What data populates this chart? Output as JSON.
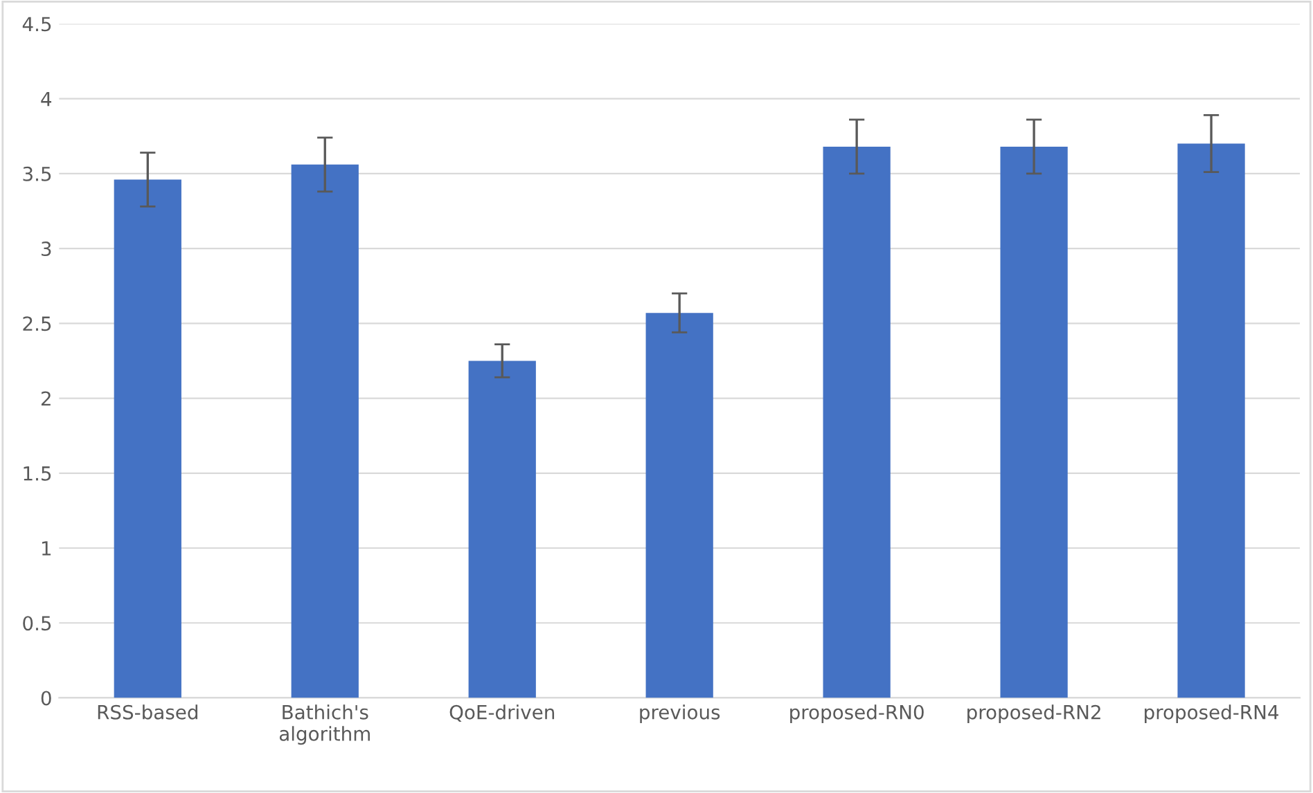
{
  "chart_data": {
    "type": "bar",
    "categories": [
      "RSS-based",
      "Bathich's algorithm",
      "QoE-driven",
      "previous",
      "proposed-RN0",
      "proposed-RN2",
      "proposed-RN4"
    ],
    "values": [
      3.46,
      3.56,
      2.25,
      2.57,
      3.68,
      3.68,
      3.7
    ],
    "errors": [
      0.18,
      0.18,
      0.11,
      0.13,
      0.18,
      0.18,
      0.19
    ],
    "color": "#4472c4",
    "ylim": [
      0,
      4.5
    ],
    "yticks": [
      0,
      0.5,
      1,
      1.5,
      2,
      2.5,
      3,
      3.5,
      4,
      4.5
    ],
    "grid": "y"
  }
}
